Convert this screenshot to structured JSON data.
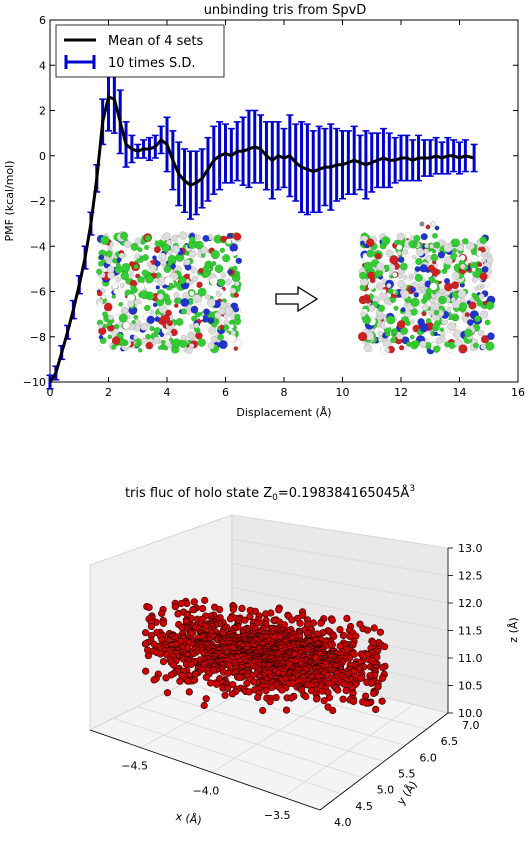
{
  "chart_data": [
    {
      "type": "line",
      "title": "unbinding tris from SpvD",
      "xlabel": "Displacement (Å)",
      "ylabel": "PMF (kcal/mol)",
      "xlim": [
        0,
        16
      ],
      "ylim": [
        -10,
        6
      ],
      "xticks": [
        "0",
        "2",
        "4",
        "6",
        "8",
        "10",
        "12",
        "14",
        "16"
      ],
      "yticks": [
        "−10",
        "−8",
        "−6",
        "−4",
        "−2",
        "0",
        "2",
        "4",
        "6"
      ],
      "grid": false,
      "legend_position": "top-left",
      "colors": {
        "mean": "#000000",
        "error": "#0000cc"
      },
      "series": [
        {
          "name": "Mean of 4 sets",
          "x": [
            0.0,
            0.2,
            0.4,
            0.6,
            0.8,
            1.0,
            1.2,
            1.4,
            1.6,
            1.8,
            2.0,
            2.2,
            2.4,
            2.6,
            2.8,
            3.0,
            3.2,
            3.4,
            3.6,
            3.8,
            4.0,
            4.2,
            4.4,
            4.6,
            4.8,
            5.0,
            5.2,
            5.4,
            5.6,
            5.8,
            6.0,
            6.2,
            6.4,
            6.6,
            6.8,
            7.0,
            7.2,
            7.4,
            7.6,
            7.8,
            8.0,
            8.2,
            8.4,
            8.6,
            8.8,
            9.0,
            9.2,
            9.4,
            9.6,
            9.8,
            10.0,
            10.2,
            10.4,
            10.6,
            10.8,
            11.0,
            11.2,
            11.4,
            11.6,
            11.8,
            12.0,
            12.2,
            12.4,
            12.6,
            12.8,
            13.0,
            13.2,
            13.4,
            13.6,
            13.8,
            14.0,
            14.2,
            14.5
          ],
          "y": [
            -10.0,
            -9.6,
            -8.7,
            -7.8,
            -6.8,
            -5.7,
            -4.5,
            -3.0,
            -1.0,
            1.5,
            2.6,
            2.5,
            1.5,
            0.5,
            0.3,
            0.2,
            0.3,
            0.3,
            0.4,
            0.7,
            0.5,
            -0.2,
            -0.8,
            -1.1,
            -1.3,
            -1.2,
            -1.0,
            -0.6,
            -0.2,
            0.0,
            0.1,
            0.0,
            0.2,
            0.2,
            0.3,
            0.4,
            0.3,
            0.0,
            -0.2,
            0.0,
            -0.1,
            0.0,
            -0.3,
            -0.5,
            -0.6,
            -0.7,
            -0.6,
            -0.5,
            -0.5,
            -0.4,
            -0.4,
            -0.3,
            -0.2,
            -0.3,
            -0.4,
            -0.3,
            -0.2,
            -0.1,
            -0.2,
            -0.2,
            -0.1,
            -0.1,
            -0.2,
            -0.1,
            -0.1,
            -0.1,
            0.0,
            -0.1,
            0.0,
            0.0,
            -0.1,
            0.0,
            -0.1
          ]
        },
        {
          "name": "10 times S.D.",
          "error": [
            0.3,
            0.3,
            0.3,
            0.3,
            0.4,
            0.4,
            0.5,
            0.5,
            0.6,
            1.0,
            1.5,
            1.5,
            1.4,
            1.0,
            0.6,
            0.3,
            0.4,
            0.5,
            0.5,
            0.6,
            1.2,
            1.3,
            1.4,
            1.4,
            1.5,
            1.4,
            1.3,
            1.4,
            1.5,
            1.5,
            1.3,
            1.2,
            1.3,
            1.5,
            1.7,
            1.6,
            1.5,
            1.5,
            1.7,
            1.5,
            1.3,
            1.8,
            1.7,
            2.0,
            2.0,
            1.8,
            1.9,
            1.7,
            1.9,
            1.6,
            1.5,
            1.4,
            1.5,
            1.2,
            1.5,
            1.3,
            1.2,
            1.3,
            1.2,
            1.0,
            1.0,
            1.0,
            0.9,
            1.0,
            0.8,
            0.8,
            0.8,
            0.7,
            0.8,
            0.7,
            0.7,
            0.7,
            0.6
          ]
        }
      ],
      "annotation": {
        "arrow": "hollow-right-arrow"
      }
    },
    {
      "type": "scatter",
      "title": "tris fluc of holo state Z",
      "title_sub": "0",
      "title_value": "=0.198384165045Å",
      "title_sup": "3",
      "xlabel": "x (Å)",
      "ylabel": "y (Å)",
      "zlabel": "z (Å)",
      "xticks": [
        "−4.5",
        "−4.0",
        "−3.5"
      ],
      "yticks": [
        "4.0",
        "4.5",
        "5.0",
        "5.5",
        "6.0",
        "6.5",
        "7.0"
      ],
      "zticks": [
        "10.0",
        "10.5",
        "11.0",
        "11.5",
        "12.0",
        "12.5",
        "13.0"
      ],
      "xlim": [
        -4.8,
        -3.2
      ],
      "ylim": [
        4.0,
        7.0
      ],
      "zlim": [
        10.0,
        13.0
      ],
      "colors": {
        "marker": "#cc0000",
        "edge": "#330000"
      },
      "cloud": {
        "x_center": -4.1,
        "y_center": 5.5,
        "z_center": 11.0,
        "point_count": 1400
      }
    }
  ]
}
